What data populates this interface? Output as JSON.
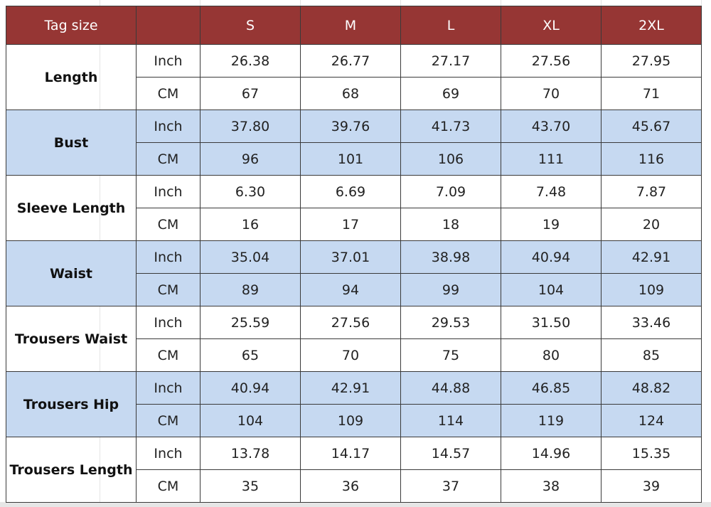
{
  "header": {
    "label": "Tag size",
    "sizes": [
      "S",
      "M",
      "L",
      "XL",
      "2XL"
    ]
  },
  "groups": [
    {
      "name": "Length",
      "rows": [
        {
          "unit": "Inch",
          "values": [
            "26.38",
            "26.77",
            "27.17",
            "27.56",
            "27.95"
          ]
        },
        {
          "unit": "CM",
          "values": [
            "67",
            "68",
            "69",
            "70",
            "71"
          ]
        }
      ]
    },
    {
      "name": "Bust",
      "rows": [
        {
          "unit": "Inch",
          "values": [
            "37.80",
            "39.76",
            "41.73",
            "43.70",
            "45.67"
          ]
        },
        {
          "unit": "CM",
          "values": [
            "96",
            "101",
            "106",
            "111",
            "116"
          ]
        }
      ]
    },
    {
      "name": "Sleeve  Length",
      "rows": [
        {
          "unit": "Inch",
          "values": [
            "6.30",
            "6.69",
            "7.09",
            "7.48",
            "7.87"
          ]
        },
        {
          "unit": "CM",
          "values": [
            "16",
            "17",
            "18",
            "19",
            "20"
          ]
        }
      ]
    },
    {
      "name": "Waist",
      "rows": [
        {
          "unit": "Inch",
          "values": [
            "35.04",
            "37.01",
            "38.98",
            "40.94",
            "42.91"
          ]
        },
        {
          "unit": "CM",
          "values": [
            "89",
            "94",
            "99",
            "104",
            "109"
          ]
        }
      ]
    },
    {
      "name": "Trousers Waist",
      "rows": [
        {
          "unit": "Inch",
          "values": [
            "25.59",
            "27.56",
            "29.53",
            "31.50",
            "33.46"
          ]
        },
        {
          "unit": "CM",
          "values": [
            "65",
            "70",
            "75",
            "80",
            "85"
          ]
        }
      ]
    },
    {
      "name": "Trousers Hip",
      "rows": [
        {
          "unit": "Inch",
          "values": [
            "40.94",
            "42.91",
            "44.88",
            "46.85",
            "48.82"
          ]
        },
        {
          "unit": "CM",
          "values": [
            "104",
            "109",
            "114",
            "119",
            "124"
          ]
        }
      ]
    },
    {
      "name": "Trousers Length",
      "rows": [
        {
          "unit": "Inch",
          "values": [
            "13.78",
            "14.17",
            "14.57",
            "14.96",
            "15.35"
          ]
        },
        {
          "unit": "CM",
          "values": [
            "35",
            "36",
            "37",
            "38",
            "39"
          ]
        }
      ]
    }
  ]
}
